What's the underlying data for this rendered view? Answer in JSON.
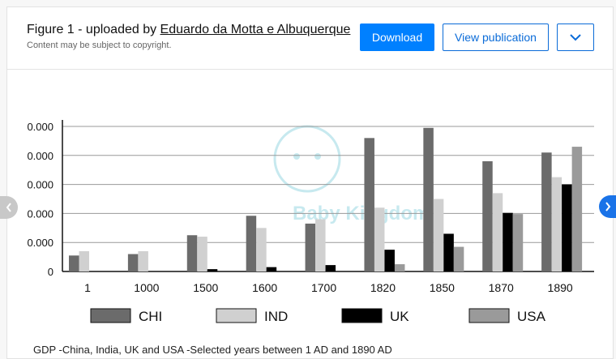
{
  "header": {
    "title_prefix": "Figure 1 - uploaded by ",
    "author": "Eduardo da Motta e Albuquerque",
    "subtitle": "Content may be subject to copyright.",
    "download_label": "Download",
    "view_label": "View publication",
    "menu_icon": "chevron-down-icon"
  },
  "caption": "GDP -China, India, UK and USA -Selected years between 1 AD and 1890 AD",
  "watermark": "Baby Kingdom",
  "colors": {
    "CHI": "#6b6b6b",
    "IND": "#d0d0d0",
    "UK": "#000000",
    "USA": "#9a9a9a",
    "primary": "#0080ff"
  },
  "chart_data": {
    "type": "bar",
    "categories": [
      "1",
      "1000",
      "1500",
      "1600",
      "1700",
      "1820",
      "1850",
      "1870",
      "1890"
    ],
    "y_tick_labels": [
      "0",
      "0.000",
      "0.000",
      "0.000",
      "0.000",
      "0.000"
    ],
    "ylim": [
      0,
      5
    ],
    "series": [
      {
        "name": "CHI",
        "values": [
          0.55,
          0.6,
          1.25,
          1.92,
          1.65,
          4.6,
          4.95,
          3.8,
          4.1
        ]
      },
      {
        "name": "IND",
        "values": [
          0.7,
          0.7,
          1.2,
          1.5,
          1.8,
          2.2,
          2.5,
          2.7,
          3.25
        ]
      },
      {
        "name": "UK",
        "values": [
          0,
          0,
          0.08,
          0.15,
          0.22,
          0.75,
          1.3,
          2.02,
          3.0
        ]
      },
      {
        "name": "USA",
        "values": [
          0,
          0,
          0,
          0,
          0,
          0.25,
          0.85,
          1.98,
          4.3
        ]
      }
    ],
    "grid": true,
    "legend": "bottom"
  }
}
